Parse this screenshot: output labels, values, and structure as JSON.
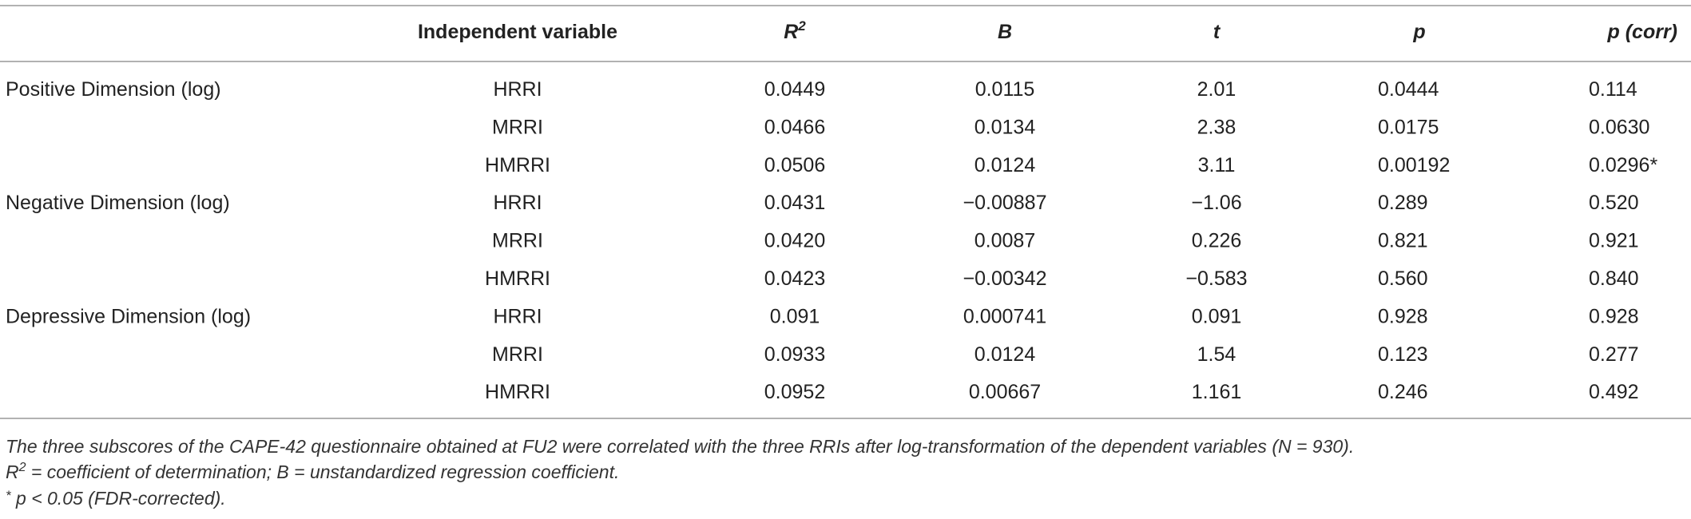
{
  "table": {
    "columns": [
      "Independent variable",
      {
        "text": "R",
        "sup": "2"
      },
      "B",
      "t",
      "p",
      "p (corr)"
    ],
    "groups": [
      {
        "dependent": "Positive Dimension (log)",
        "rows": [
          [
            "HRRI",
            "0.0449",
            "0.0115",
            "2.01",
            "0.0444",
            "0.114"
          ],
          [
            "MRRI",
            "0.0466",
            "0.0134",
            "2.38",
            "0.0175",
            "0.0630"
          ],
          [
            "HMRRI",
            "0.0506",
            "0.0124",
            "3.11",
            "0.00192",
            "0.0296*"
          ]
        ]
      },
      {
        "dependent": "Negative Dimension (log)",
        "rows": [
          [
            "HRRI",
            "0.0431",
            "−0.00887",
            "−1.06",
            "0.289",
            "0.520"
          ],
          [
            "MRRI",
            "0.0420",
            "0.0087",
            "0.226",
            "0.821",
            "0.921"
          ],
          [
            "HMRRI",
            "0.0423",
            "−0.00342",
            "−0.583",
            "0.560",
            "0.840"
          ]
        ]
      },
      {
        "dependent": "Depressive Dimension (log)",
        "rows": [
          [
            "HRRI",
            "0.091",
            "0.000741",
            "0.091",
            "0.928",
            "0.928"
          ],
          [
            "MRRI",
            "0.0933",
            "0.0124",
            "1.54",
            "0.123",
            "0.277"
          ],
          [
            "HMRRI",
            "0.0952",
            "0.00667",
            "1.161",
            "0.246",
            "0.492"
          ]
        ]
      }
    ]
  },
  "footnotes": {
    "line1": "The three subscores of the CAPE-42 questionnaire obtained at FU2 were correlated with the three RRIs after log-transformation of the dependent variables (N = 930).",
    "line2": {
      "symbol": "R",
      "sup": "2",
      "rest": " = coefficient of determination; B = unstandardized regression coefficient."
    },
    "line3": {
      "sup": "*",
      "rest": " p < 0.05 (FDR-corrected)."
    }
  }
}
